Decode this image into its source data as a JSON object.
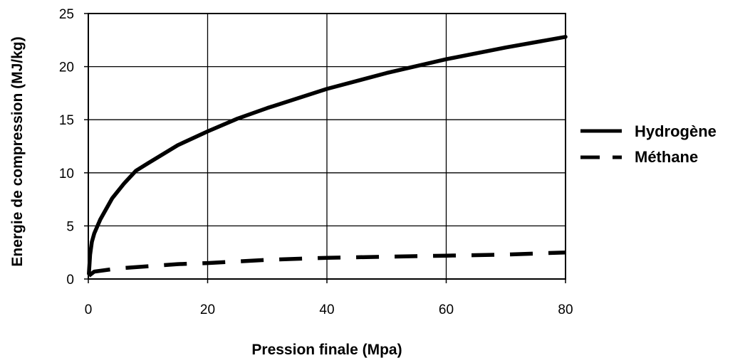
{
  "chart_data": {
    "type": "line",
    "xlabel": "Pression finale (Mpa)",
    "ylabel": "Energie de compression (MJ/kg)",
    "xlim": [
      0,
      80
    ],
    "ylim": [
      0,
      25
    ],
    "xticks": [
      0,
      20,
      40,
      60,
      80
    ],
    "yticks": [
      0,
      5,
      10,
      15,
      20,
      25
    ],
    "grid": true,
    "legend_position": "right",
    "series": [
      {
        "name": "Hydrogène",
        "style": "solid",
        "color": "#000000",
        "x": [
          0.1,
          0.3,
          0.6,
          1,
          2,
          4,
          6,
          8,
          10,
          15,
          20,
          25,
          30,
          40,
          50,
          60,
          70,
          80
        ],
        "y": [
          0.5,
          2.3,
          3.5,
          4.3,
          5.6,
          7.6,
          9.0,
          10.2,
          10.9,
          12.6,
          13.9,
          15.1,
          16.1,
          17.9,
          19.4,
          20.7,
          21.8,
          22.8
        ]
      },
      {
        "name": "Méthane",
        "style": "dashed",
        "color": "#000000",
        "x": [
          0.1,
          1,
          5,
          10,
          15,
          20,
          30,
          40,
          50,
          60,
          70,
          80
        ],
        "y": [
          0.3,
          0.7,
          1.0,
          1.2,
          1.4,
          1.5,
          1.8,
          2.0,
          2.1,
          2.2,
          2.3,
          2.5
        ]
      }
    ]
  }
}
